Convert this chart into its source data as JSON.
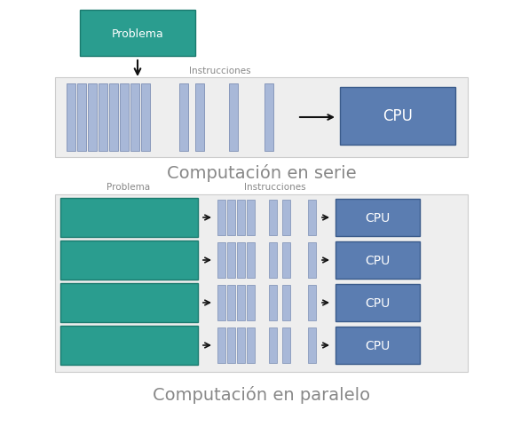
{
  "bg_color": "#ffffff",
  "teal_color": "#2a9d8f",
  "blue_bar_color": "#a8b8d8",
  "cpu_color": "#5b7db1",
  "cpu_text_color": "#ffffff",
  "label_color": "#888888",
  "title_color": "#888888",
  "arrow_color": "#111111",
  "panel_color": "#eeeeee",
  "panel_edge": "#cccccc",
  "serial_title": "Computación en serie",
  "parallel_title": "Computación en paralelo",
  "problem_label": "Problema",
  "instructions_label": "Instrucciones",
  "cpu_label": "CPU"
}
